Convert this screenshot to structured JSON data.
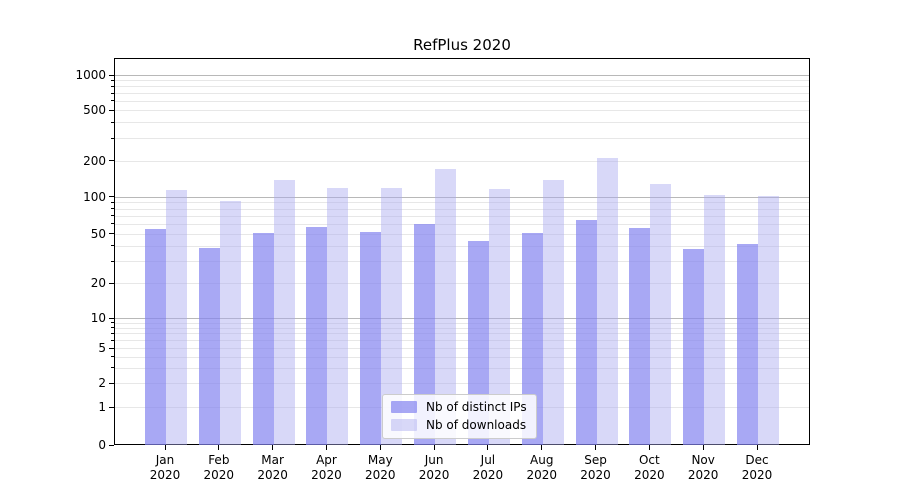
{
  "title": "RefPlus 2020",
  "colors": {
    "bar_ips": "rgba(131,131,239,0.70)",
    "bar_downloads": "rgba(168,168,239,0.45)",
    "grid_minor": "#e7e7e7",
    "grid_major": "#b8b8b8",
    "axis": "#000000"
  },
  "legend": {
    "items": [
      {
        "label": "Nb of distinct IPs",
        "series": "ips"
      },
      {
        "label": "Nb of downloads",
        "series": "downloads"
      }
    ]
  },
  "chart_data": {
    "type": "bar",
    "title": "RefPlus 2020",
    "categories": [
      "Jan 2020",
      "Feb 2020",
      "Mar 2020",
      "Apr 2020",
      "May 2020",
      "Jun 2020",
      "Jul 2020",
      "Aug 2020",
      "Sep 2020",
      "Oct 2020",
      "Nov 2020",
      "Dec 2020"
    ],
    "series": [
      {
        "name": "Nb of distinct IPs",
        "values": [
          55,
          39,
          51,
          58,
          52,
          61,
          44,
          51,
          66,
          56,
          38,
          42
        ]
      },
      {
        "name": "Nb of downloads",
        "values": [
          115,
          94,
          140,
          121,
          121,
          172,
          118,
          140,
          215,
          129,
          106,
          104
        ]
      }
    ],
    "xlabel": "",
    "ylabel": "",
    "yscale": "symlog-like",
    "ylim": [
      0,
      1000
    ],
    "y_ticks": [
      0,
      1,
      2,
      5,
      10,
      20,
      50,
      100,
      200,
      500,
      1000
    ],
    "y_tick_labels": [
      "0",
      "1",
      "2",
      "5",
      "10",
      "20",
      "50",
      "100",
      "200",
      "500",
      "1000"
    ],
    "y_minor_gridlines": [
      2,
      3,
      4,
      5,
      6,
      7,
      8,
      9,
      20,
      30,
      40,
      50,
      60,
      70,
      80,
      90,
      200,
      300,
      400,
      500,
      600,
      700,
      800,
      900
    ],
    "y_major_gridlines": [
      10,
      100,
      1000
    ],
    "grid": true,
    "legend_position": "lower-center"
  }
}
